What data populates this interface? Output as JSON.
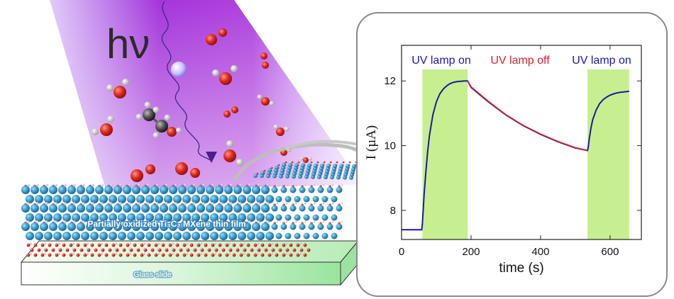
{
  "illustration": {
    "photon_label": "hν",
    "film_label": "Partially oxidized Ti₃C₂ MXene thin film",
    "substrate_label": "Glass slide"
  },
  "chart_data": {
    "type": "line",
    "xlabel": "time (s)",
    "ylabel": "I (µA)",
    "xlim": [
      0,
      690
    ],
    "ylim": [
      7.1,
      13.1
    ],
    "x_ticks": [
      0,
      200,
      400,
      600
    ],
    "y_ticks": [
      8,
      10,
      12
    ],
    "annotations": [
      {
        "text": "UV lamp on",
        "color": "#1a1aa8"
      },
      {
        "text": "UV lamp off",
        "color": "#e0202a"
      },
      {
        "text": "UV lamp on",
        "color": "#1a1aa8"
      }
    ],
    "shaded_regions": [
      {
        "x0": 60,
        "x1": 190,
        "color": "#c7ef8f"
      },
      {
        "x0": 535,
        "x1": 655,
        "color": "#c7ef8f"
      }
    ],
    "series": [
      {
        "color": "#1a1aa8",
        "x": [
          0,
          30,
          58,
          60,
          65,
          70,
          75,
          80,
          90,
          100,
          110,
          120,
          130,
          140,
          150,
          160,
          170,
          180,
          190,
          200,
          250,
          300,
          350,
          400,
          450,
          500,
          535,
          537,
          540,
          545,
          550,
          560,
          570,
          580,
          590,
          600,
          610,
          620,
          630,
          640,
          655
        ],
        "y": [
          7.4,
          7.4,
          7.4,
          7.6,
          8.5,
          9.2,
          9.8,
          10.3,
          10.95,
          11.35,
          11.6,
          11.75,
          11.85,
          11.92,
          11.96,
          11.98,
          11.99,
          12.0,
          12.0,
          11.8,
          11.35,
          10.95,
          10.62,
          10.35,
          10.12,
          9.93,
          9.85,
          9.95,
          10.2,
          10.55,
          10.8,
          11.1,
          11.3,
          11.42,
          11.5,
          11.56,
          11.6,
          11.63,
          11.65,
          11.66,
          11.68
        ]
      },
      {
        "color": "#e0202a",
        "x": [
          190,
          200,
          250,
          300,
          350,
          400,
          450,
          500,
          535
        ],
        "y": [
          12.0,
          11.82,
          11.37,
          10.96,
          10.63,
          10.36,
          10.13,
          9.94,
          9.85
        ]
      }
    ]
  }
}
